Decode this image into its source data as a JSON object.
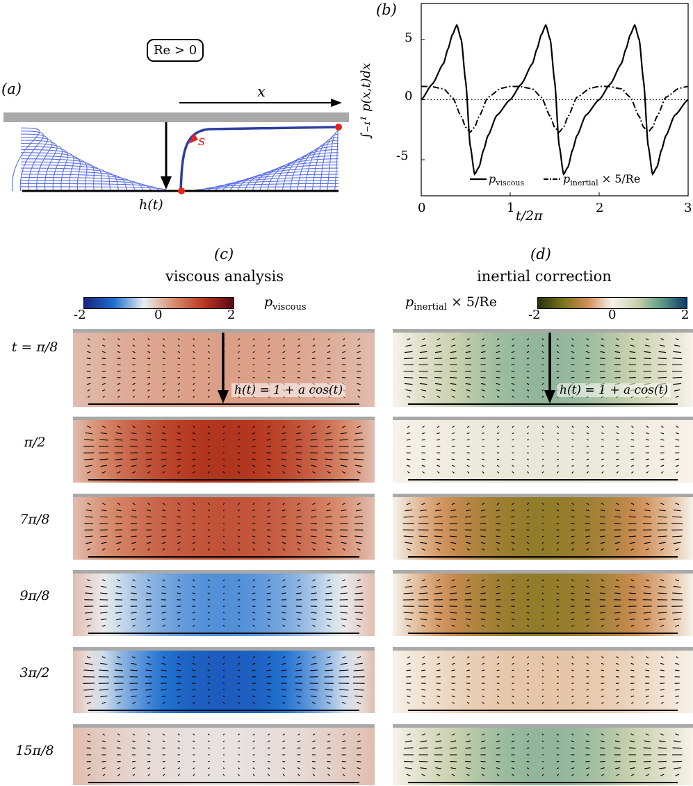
{
  "panel_a": {
    "label": "(a)",
    "re_box": "Re > 0",
    "x_label": "x",
    "h_label": "h(t)",
    "s_label": "s"
  },
  "panel_b": {
    "label": "(b)"
  },
  "chart_data": {
    "type": "line",
    "title": "",
    "xlabel": "t/2π",
    "ylabel": "∫₋₁¹ p(x,t)dx",
    "xlim": [
      0,
      3
    ],
    "ylim": [
      -8,
      8
    ],
    "xticks": [
      "0",
      "1",
      "2",
      "3"
    ],
    "yticks": [
      "5",
      "0",
      "-5"
    ],
    "series": [
      {
        "name": "p_viscous",
        "legend": "p",
        "legend_sub": "viscous",
        "style": "solid",
        "x": [
          0,
          0.125,
          0.25,
          0.3,
          0.35,
          0.4,
          0.45,
          0.5,
          0.55,
          0.6,
          0.65,
          0.7,
          0.75,
          0.85,
          1.0
        ],
        "y": [
          0.0,
          1.3,
          3.0,
          4.2,
          5.4,
          6.2,
          5.0,
          1.5,
          -3.8,
          -6.2,
          -5.6,
          -4.2,
          -3.0,
          -1.3,
          0.0
        ]
      },
      {
        "name": "p_inertial_x5_over_Re",
        "legend": "p",
        "legend_sub": "inertial",
        "legend_suffix": " × 5/Re",
        "style": "dashdot",
        "x": [
          0,
          0.1,
          0.25,
          0.35,
          0.45,
          0.5,
          0.55,
          0.6,
          0.65,
          0.75,
          0.9,
          1.0
        ],
        "y": [
          1.1,
          1.1,
          0.9,
          0.2,
          -1.4,
          -2.3,
          -2.7,
          -2.3,
          -1.4,
          0.2,
          0.95,
          1.1
        ]
      }
    ],
    "reference_line": {
      "y": 0,
      "style": "dotted"
    }
  },
  "panel_c": {
    "label": "(c)",
    "title": "viscous analysis",
    "cbar_label": "p",
    "cbar_sub": "viscous",
    "cbar_ticks": [
      "-2",
      "0",
      "2"
    ],
    "colors": [
      "#1a237e",
      "#1e6fd0",
      "#e9eef0",
      "#d98c6e",
      "#b5381f",
      "#5c0616"
    ],
    "first_panel_h_label": "h(t) = 1 + a cos(t)"
  },
  "panel_d": {
    "label": "(d)",
    "title": "inertial correction",
    "cbar_label": "p",
    "cbar_sub": "inertial",
    "cbar_suffix": " × 5/Re",
    "cbar_ticks": [
      "-2",
      "0",
      "2"
    ],
    "colors": [
      "#283212",
      "#7a7418",
      "#d08e56",
      "#f7f2ea",
      "#c9d1ad",
      "#5a9a86",
      "#0b3a66"
    ],
    "first_panel_h_label": "h(t) = 1 + a cos(t)"
  },
  "rows": [
    {
      "t_label": "t = π/8",
      "viscous": 0.25,
      "inertial": 1.0
    },
    {
      "t_label": "π/2",
      "viscous": 1.25,
      "inertial": 0.2
    },
    {
      "t_label": "7π/8",
      "viscous": 0.95,
      "inertial": -1.15
    },
    {
      "t_label": "9π/8",
      "viscous": -1.0,
      "inertial": -1.15
    },
    {
      "t_label": "3π/2",
      "viscous": -1.4,
      "inertial": -0.3
    },
    {
      "t_label": "15π/8",
      "viscous": -0.3,
      "inertial": 1.0
    }
  ]
}
